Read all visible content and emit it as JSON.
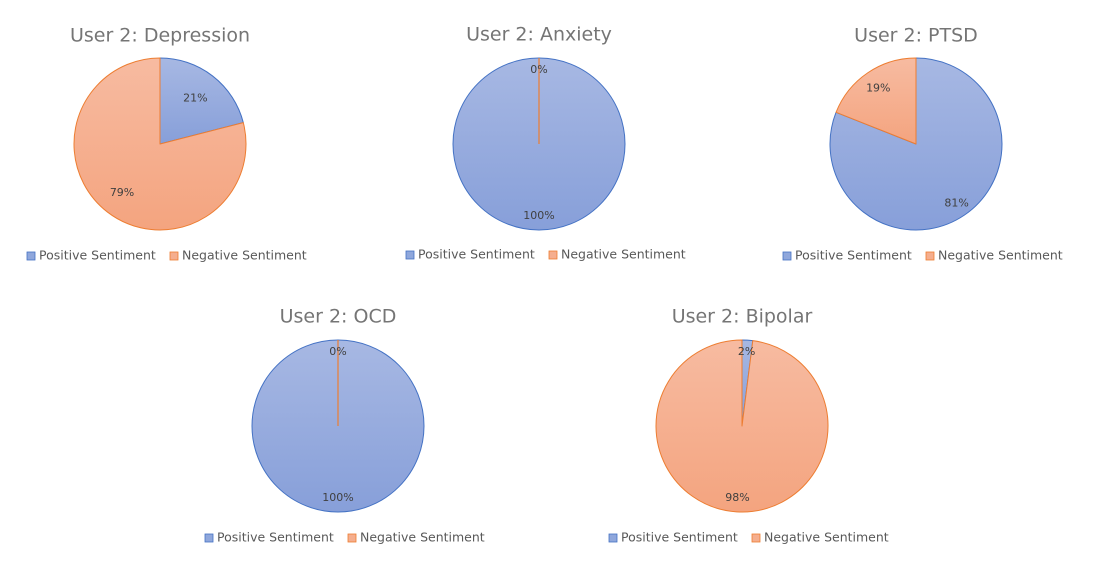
{
  "colors": {
    "positive_fill": "#8fa7dc",
    "positive_stroke": "#4472c4",
    "negative_fill": "#f5ae8e",
    "negative_stroke": "#ed7d31",
    "title": "#757575",
    "label": "#404040",
    "legend": "#595959"
  },
  "chart_data": [
    {
      "type": "pie",
      "title": "User 2: Depression",
      "categories": [
        "Positive Sentiment",
        "Negative Sentiment"
      ],
      "values": [
        21,
        79
      ],
      "data_labels": [
        "21%",
        "79%"
      ],
      "legend_position": "bottom"
    },
    {
      "type": "pie",
      "title": "User 2: Anxiety",
      "categories": [
        "Positive Sentiment",
        "Negative Sentiment"
      ],
      "values": [
        100,
        0
      ],
      "data_labels": [
        "100%",
        "0%"
      ],
      "legend_position": "bottom"
    },
    {
      "type": "pie",
      "title": "User 2: PTSD",
      "categories": [
        "Positive Sentiment",
        "Negative Sentiment"
      ],
      "values": [
        81,
        19
      ],
      "data_labels": [
        "81%",
        "19%"
      ],
      "legend_position": "bottom"
    },
    {
      "type": "pie",
      "title": "User 2: OCD",
      "categories": [
        "Positive Sentiment",
        "Negative Sentiment"
      ],
      "values": [
        100,
        0
      ],
      "data_labels": [
        "100%",
        "0%"
      ],
      "legend_position": "bottom"
    },
    {
      "type": "pie",
      "title": "User 2: Bipolar",
      "categories": [
        "Positive Sentiment",
        "Negative Sentiment"
      ],
      "values": [
        2,
        98
      ],
      "data_labels": [
        "2%",
        "98%"
      ],
      "legend_position": "bottom"
    }
  ]
}
